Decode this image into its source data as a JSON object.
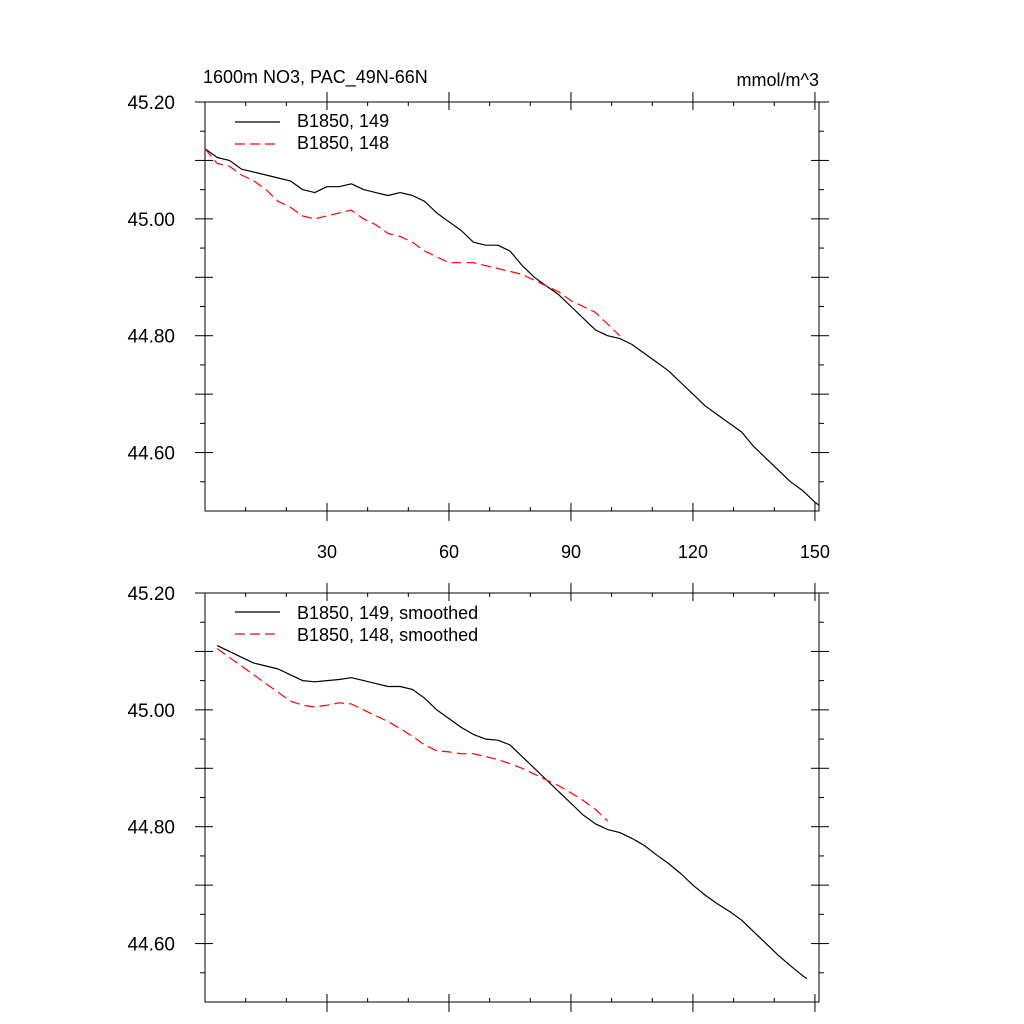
{
  "header": {
    "title": "1600m NO3, PAC_49N-66N",
    "units": "mmol/m^3"
  },
  "colors": {
    "run149": "#000000",
    "run148": "#ff0000"
  },
  "chart_data": [
    {
      "type": "line",
      "xlim": [
        0,
        151
      ],
      "ylim": [
        44.5,
        45.2
      ],
      "x_ticks": [
        30,
        60,
        90,
        120,
        150
      ],
      "x_tick_labels": [
        "30",
        "60",
        "90",
        "120",
        "150"
      ],
      "y_ticks": [
        44.6,
        44.8,
        45.0,
        45.2
      ],
      "y_tick_labels": [
        "44.60",
        "44.80",
        "45.00",
        "45.20"
      ],
      "legend_position": "top-left",
      "series": [
        {
          "name": "B1850, 149",
          "style": "solid",
          "color": "#000000",
          "x": [
            0,
            3,
            6,
            9,
            12,
            15,
            18,
            21,
            24,
            27,
            30,
            33,
            36,
            39,
            42,
            45,
            48,
            51,
            54,
            57,
            60,
            63,
            66,
            69,
            72,
            75,
            78,
            81,
            84,
            87,
            90,
            93,
            96,
            99,
            102,
            105,
            108,
            111,
            114,
            117,
            120,
            123,
            126,
            129,
            132,
            135,
            138,
            141,
            144,
            147,
            150,
            151
          ],
          "y": [
            45.12,
            45.105,
            45.1,
            45.085,
            45.08,
            45.075,
            45.07,
            45.065,
            45.05,
            45.045,
            45.055,
            45.055,
            45.06,
            45.05,
            45.045,
            45.04,
            45.045,
            45.04,
            45.03,
            45.01,
            44.995,
            44.98,
            44.96,
            44.955,
            44.955,
            44.945,
            44.92,
            44.9,
            44.885,
            44.87,
            44.85,
            44.83,
            44.81,
            44.8,
            44.795,
            44.785,
            44.77,
            44.755,
            44.74,
            44.72,
            44.7,
            44.68,
            44.665,
            44.65,
            44.635,
            44.61,
            44.59,
            44.57,
            44.55,
            44.535,
            44.515,
            44.51
          ]
        },
        {
          "name": "B1850, 148",
          "style": "dashed",
          "color": "#ff0000",
          "x": [
            0,
            3,
            6,
            9,
            12,
            15,
            18,
            21,
            24,
            27,
            30,
            33,
            36,
            39,
            42,
            45,
            48,
            51,
            54,
            57,
            60,
            63,
            66,
            69,
            72,
            75,
            78,
            81,
            84,
            87,
            90,
            93,
            96,
            99,
            102
          ],
          "y": [
            45.12,
            45.095,
            45.09,
            45.075,
            45.065,
            45.05,
            45.03,
            45.02,
            45.005,
            45.0,
            45.005,
            45.01,
            45.015,
            45.0,
            44.99,
            44.975,
            44.97,
            44.96,
            44.945,
            44.935,
            44.925,
            44.925,
            44.925,
            44.92,
            44.915,
            44.91,
            44.905,
            44.895,
            44.885,
            44.875,
            44.86,
            44.85,
            44.84,
            44.82,
            44.8
          ]
        }
      ]
    },
    {
      "type": "line",
      "xlim": [
        0,
        151
      ],
      "ylim": [
        44.5,
        45.2
      ],
      "x_ticks": [
        30,
        60,
        90,
        120,
        150
      ],
      "x_tick_labels": [],
      "y_ticks": [
        44.6,
        44.8,
        45.0,
        45.2
      ],
      "y_tick_labels": [
        "44.60",
        "44.80",
        "45.00",
        "45.20"
      ],
      "legend_position": "top-left",
      "series": [
        {
          "name": "B1850, 149, smoothed",
          "style": "solid",
          "color": "#000000",
          "x": [
            3,
            6,
            9,
            12,
            15,
            18,
            21,
            24,
            27,
            30,
            33,
            36,
            39,
            42,
            45,
            48,
            51,
            54,
            57,
            60,
            63,
            66,
            69,
            72,
            75,
            78,
            81,
            84,
            87,
            90,
            93,
            96,
            99,
            102,
            105,
            108,
            111,
            114,
            117,
            120,
            123,
            126,
            129,
            132,
            135,
            138,
            141,
            144,
            147,
            148
          ],
          "y": [
            45.11,
            45.1,
            45.09,
            45.08,
            45.075,
            45.07,
            45.06,
            45.05,
            45.048,
            45.05,
            45.052,
            45.055,
            45.05,
            45.045,
            45.04,
            45.04,
            45.035,
            45.02,
            45.0,
            44.985,
            44.97,
            44.958,
            44.95,
            44.948,
            44.94,
            44.92,
            44.9,
            44.88,
            44.86,
            44.84,
            44.82,
            44.805,
            44.795,
            44.79,
            44.78,
            44.768,
            44.752,
            44.737,
            44.72,
            44.7,
            44.683,
            44.668,
            44.655,
            44.64,
            44.62,
            44.6,
            44.58,
            44.562,
            44.545,
            44.54
          ]
        },
        {
          "name": "B1850, 148, smoothed",
          "style": "dashed",
          "color": "#ff0000",
          "x": [
            3,
            6,
            9,
            12,
            15,
            18,
            21,
            24,
            27,
            30,
            33,
            36,
            39,
            42,
            45,
            48,
            51,
            54,
            57,
            60,
            63,
            66,
            69,
            72,
            75,
            78,
            81,
            84,
            87,
            90,
            93,
            96,
            99
          ],
          "y": [
            45.105,
            45.09,
            45.075,
            45.06,
            45.045,
            45.03,
            45.015,
            45.008,
            45.005,
            45.008,
            45.012,
            45.01,
            45.0,
            44.99,
            44.98,
            44.968,
            44.955,
            44.94,
            44.93,
            44.928,
            44.925,
            44.925,
            44.92,
            44.915,
            44.908,
            44.9,
            44.89,
            44.88,
            44.87,
            44.858,
            44.845,
            44.83,
            44.81
          ]
        }
      ]
    }
  ]
}
